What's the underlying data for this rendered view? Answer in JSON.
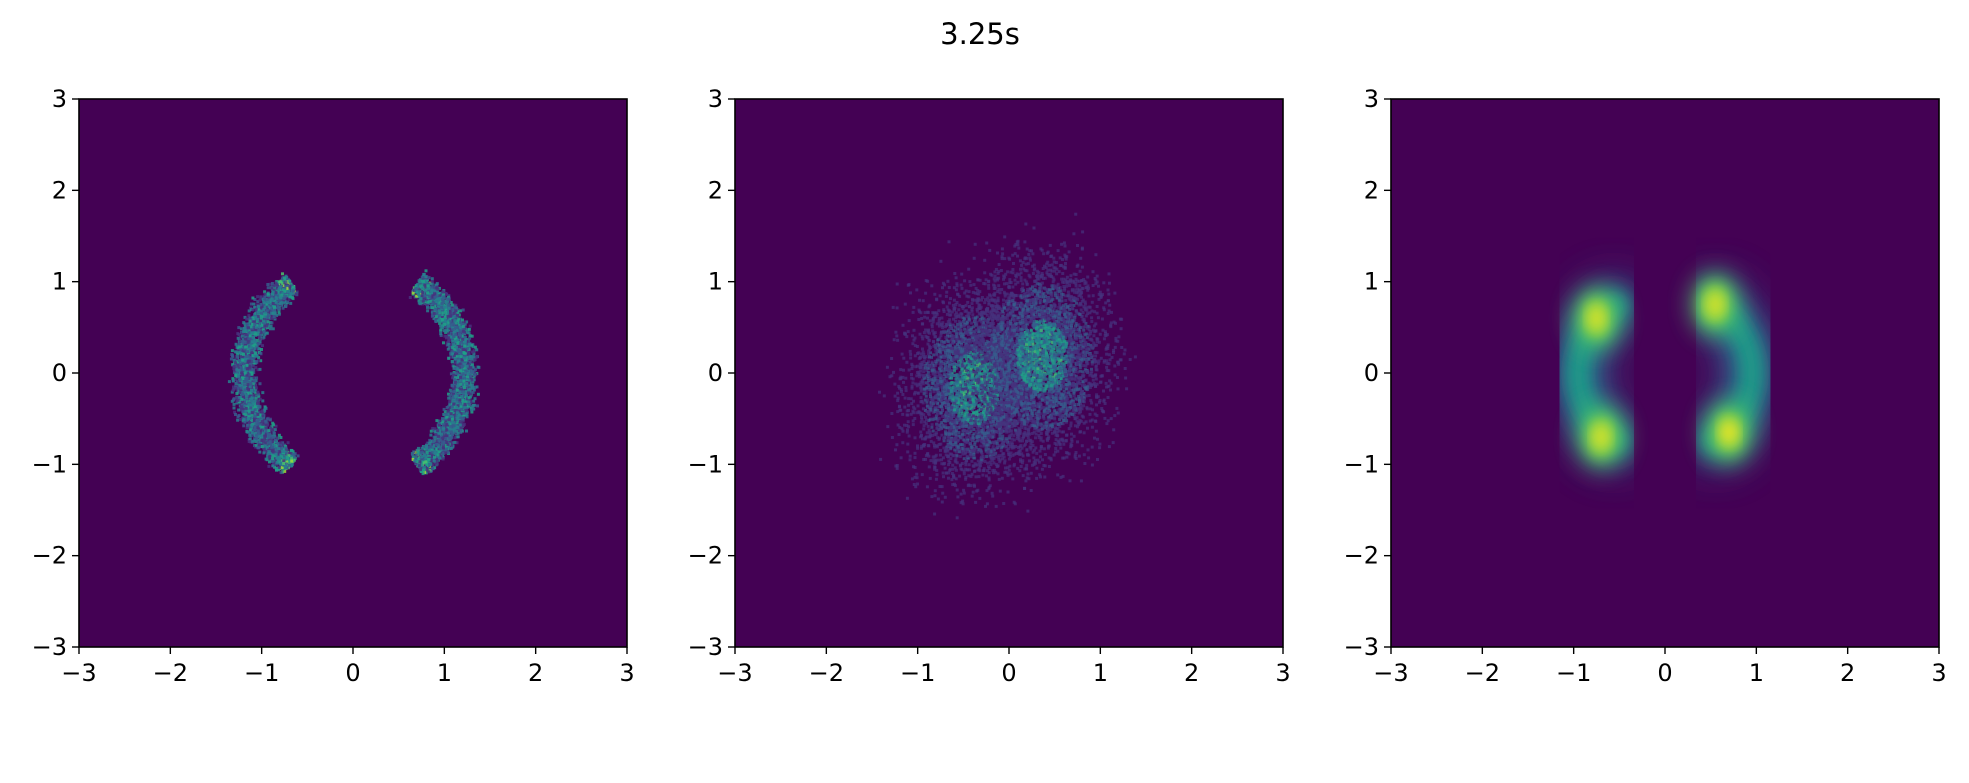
{
  "figure": {
    "title": "3.25s"
  },
  "chart_data": [
    {
      "type": "heatmap",
      "panel": "left",
      "description_of_density": "two crescent-shaped arcs (radius ~1.2) opening inward, noisy histogram samples",
      "xlim": [
        -3,
        3
      ],
      "ylim": [
        -3,
        3
      ],
      "xticks": [
        -3,
        -2,
        -1,
        0,
        1,
        2,
        3
      ],
      "yticks": [
        -3,
        -2,
        -1,
        0,
        1,
        2,
        3
      ],
      "xtick_labels": [
        "−3",
        "−2",
        "−1",
        "0",
        "1",
        "2",
        "3"
      ],
      "ytick_labels": [
        "−3",
        "−2",
        "−1",
        "0",
        "1",
        "2",
        "3"
      ],
      "features": [
        {
          "shape": "arc",
          "center": [
            0,
            0
          ],
          "radius": 1.2,
          "angle_from_deg": 125,
          "angle_to_deg": 235
        },
        {
          "shape": "arc",
          "center": [
            0,
            0
          ],
          "radius": 1.2,
          "angle_from_deg": -55,
          "angle_to_deg": 55
        }
      ],
      "colormap": "viridis",
      "background_color": "#440154"
    },
    {
      "type": "heatmap",
      "panel": "middle",
      "xlim": [
        -3,
        3
      ],
      "ylim": [
        -3,
        3
      ],
      "xticks": [
        -3,
        -2,
        -1,
        0,
        1,
        2,
        3
      ],
      "yticks": [
        -3,
        -2,
        -1,
        0,
        1,
        2,
        3
      ],
      "xtick_labels": [
        "−3",
        "−2",
        "−1",
        "0",
        "1",
        "2",
        "3"
      ],
      "ytick_labels": [
        "−3",
        "−2",
        "−1",
        "0",
        "1",
        "2",
        "3"
      ],
      "features": [
        {
          "shape": "blob",
          "center": [
            -0.4,
            -0.15
          ],
          "sigma": [
            0.35,
            0.5
          ]
        },
        {
          "shape": "blob",
          "center": [
            0.35,
            0.2
          ],
          "sigma": [
            0.35,
            0.5
          ]
        }
      ],
      "colormap": "viridis",
      "background_color": "#440154"
    },
    {
      "type": "heatmap",
      "panel": "right",
      "xlim": [
        -3,
        3
      ],
      "ylim": [
        -3,
        3
      ],
      "xticks": [
        -3,
        -2,
        -1,
        0,
        1,
        2,
        3
      ],
      "yticks": [
        -3,
        -2,
        -1,
        0,
        1,
        2,
        3
      ],
      "xtick_labels": [
        "−3",
        "−2",
        "−1",
        "0",
        "1",
        "2",
        "3"
      ],
      "ytick_labels": [
        "−3",
        "−2",
        "−1",
        "0",
        "1",
        "2",
        "3"
      ],
      "features": [
        {
          "shape": "arc",
          "center": [
            0,
            0
          ],
          "radius": 0.95,
          "angle_from_deg": 125,
          "angle_to_deg": 235
        },
        {
          "shape": "arc",
          "center": [
            0,
            0
          ],
          "radius": 0.95,
          "angle_from_deg": -55,
          "angle_to_deg": 55
        },
        {
          "shape": "hotspot",
          "center": [
            -0.75,
            0.6
          ]
        },
        {
          "shape": "hotspot",
          "center": [
            -0.7,
            -0.7
          ]
        },
        {
          "shape": "hotspot",
          "center": [
            0.7,
            -0.65
          ]
        },
        {
          "shape": "hotspot",
          "center": [
            0.55,
            0.75
          ]
        }
      ],
      "colormap": "viridis",
      "background_color": "#440154"
    }
  ]
}
